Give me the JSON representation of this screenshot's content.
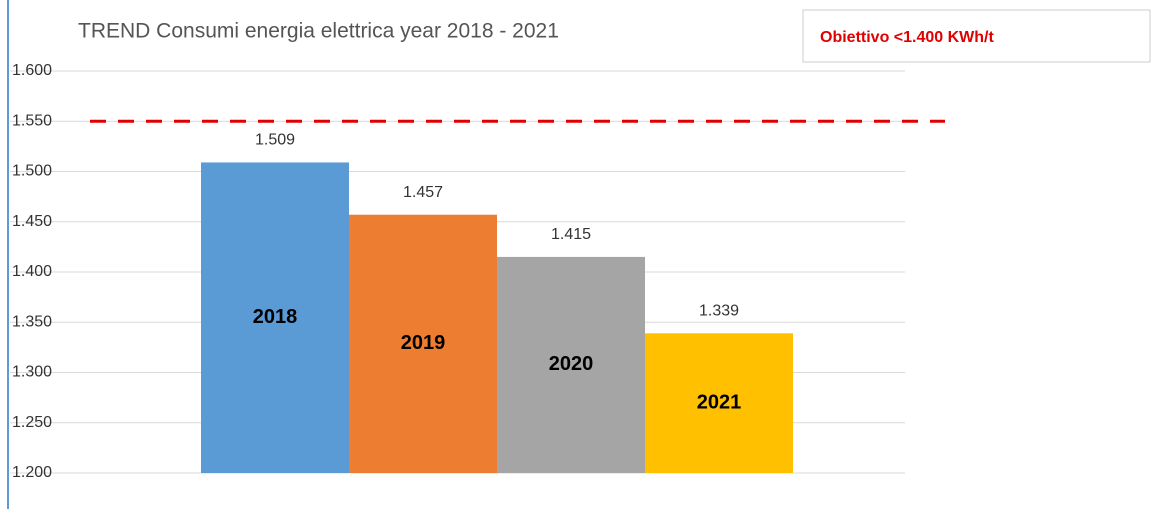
{
  "chart_data": {
    "type": "bar",
    "title": "TREND Consumi energia elettrica year 2018 - 2021",
    "annotation": "Obiettivo <1.400 KWh/t",
    "categories": [
      "2018",
      "2019",
      "2020",
      "2021"
    ],
    "values": [
      1509,
      1457,
      1415,
      1339
    ],
    "value_labels": [
      "1.509",
      "1.457",
      "1.415",
      "1.339"
    ],
    "colors": [
      "#5b9bd5",
      "#ed7d31",
      "#a5a5a5",
      "#ffc000"
    ],
    "ylim": [
      1200,
      1600
    ],
    "yticks": [
      {
        "value": 1200,
        "label": "1.200"
      },
      {
        "value": 1250,
        "label": "1.250"
      },
      {
        "value": 1300,
        "label": "1.300"
      },
      {
        "value": 1350,
        "label": "1.350"
      },
      {
        "value": 1400,
        "label": "1.400"
      },
      {
        "value": 1450,
        "label": "1.450"
      },
      {
        "value": 1500,
        "label": "1.500"
      },
      {
        "value": 1550,
        "label": "1.550"
      },
      {
        "value": 1600,
        "label": "1.600"
      }
    ],
    "reference_line": {
      "value": 1550,
      "color": "#e00000"
    },
    "grid": true
  }
}
